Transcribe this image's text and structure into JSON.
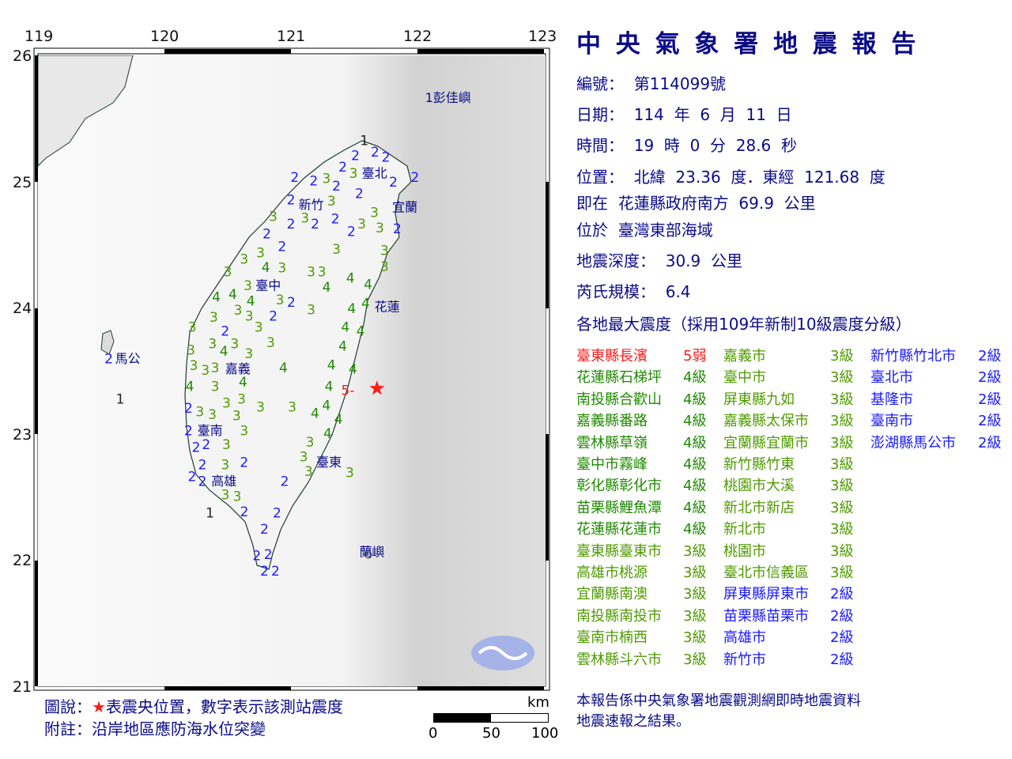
{
  "title": "中 央 氣 象 署 地 震 報 告",
  "info": {
    "number": "編號：  第114099號",
    "date": "日期：  114  年  6  月  11  日",
    "time": "時間：  19  時  0  分  28.6  秒",
    "position": "位置：  北緯  23.36  度．東經  121.68  度",
    "relative": "即在  花蓮縣政府南方  69.9  公里",
    "region": "位於  臺灣東部海域",
    "depth": "地震深度：  30.9  公里",
    "magnitude": "芮氏規模：  6.4",
    "intensity_header": "各地最大震度（採用109年新制10級震度分級）"
  },
  "colors": {
    "level1": "#222222",
    "level2": "#1a1aff",
    "level3": "#4f9a00",
    "level4": "#1f8a00",
    "level5": "#ff1a1a",
    "text": "#0b0b88",
    "frame": "#000000"
  },
  "intensity_table": [
    [
      {
        "name": "臺東縣長濱",
        "level": "5弱",
        "c": "5"
      },
      {
        "name": "花蓮縣石梯坪",
        "level": "4級",
        "c": "4"
      },
      {
        "name": "南投縣合歡山",
        "level": "4級",
        "c": "4"
      },
      {
        "name": "嘉義縣番路",
        "level": "4級",
        "c": "4"
      },
      {
        "name": "雲林縣草嶺",
        "level": "4級",
        "c": "4"
      },
      {
        "name": "臺中市霧峰",
        "level": "4級",
        "c": "4"
      },
      {
        "name": "彰化縣彰化市",
        "level": "4級",
        "c": "4"
      },
      {
        "name": "苗栗縣鯉魚潭",
        "level": "4級",
        "c": "4"
      },
      {
        "name": "花蓮縣花蓮市",
        "level": "4級",
        "c": "4"
      },
      {
        "name": "臺東縣臺東市",
        "level": "3級",
        "c": "3"
      },
      {
        "name": "高雄市桃源",
        "level": "3級",
        "c": "3"
      },
      {
        "name": "宜蘭縣南澳",
        "level": "3級",
        "c": "3"
      },
      {
        "name": "南投縣南投市",
        "level": "3級",
        "c": "3"
      },
      {
        "name": "臺南市楠西",
        "level": "3級",
        "c": "3"
      },
      {
        "name": "雲林縣斗六市",
        "level": "3級",
        "c": "3"
      }
    ],
    [
      {
        "name": "嘉義市",
        "level": "3級",
        "c": "3"
      },
      {
        "name": "臺中市",
        "level": "3級",
        "c": "3"
      },
      {
        "name": "屏東縣九如",
        "level": "3級",
        "c": "3"
      },
      {
        "name": "嘉義縣太保市",
        "level": "3級",
        "c": "3"
      },
      {
        "name": "宜蘭縣宜蘭市",
        "level": "3級",
        "c": "3"
      },
      {
        "name": "新竹縣竹東",
        "level": "3級",
        "c": "3"
      },
      {
        "name": "桃園市大溪",
        "level": "3級",
        "c": "3"
      },
      {
        "name": "新北市新店",
        "level": "3級",
        "c": "3"
      },
      {
        "name": "新北市",
        "level": "3級",
        "c": "3"
      },
      {
        "name": "桃園市",
        "level": "3級",
        "c": "3"
      },
      {
        "name": "臺北市信義區",
        "level": "3級",
        "c": "3"
      },
      {
        "name": "屏東縣屏東市",
        "level": "2級",
        "c": "2"
      },
      {
        "name": "苗栗縣苗栗市",
        "level": "2級",
        "c": "2"
      },
      {
        "name": "高雄市",
        "level": "2級",
        "c": "2"
      },
      {
        "name": "新竹市",
        "level": "2級",
        "c": "2"
      }
    ],
    [
      {
        "name": "新竹縣竹北市",
        "level": "2級",
        "c": "2"
      },
      {
        "name": "臺北市",
        "level": "2級",
        "c": "2"
      },
      {
        "name": "基隆市",
        "level": "2級",
        "c": "2"
      },
      {
        "name": "臺南市",
        "level": "2級",
        "c": "2"
      },
      {
        "name": "澎湖縣馬公市",
        "level": "2級",
        "c": "2"
      }
    ]
  ],
  "map": {
    "lon_ticks": [
      "119",
      "120",
      "121",
      "122",
      "123"
    ],
    "lat_ticks": [
      "26",
      "25",
      "24",
      "23",
      "22",
      "21"
    ],
    "lon_range": [
      119,
      123
    ],
    "lat_range": [
      21,
      26
    ],
    "epicenter": {
      "lon": 121.68,
      "lat": 23.36,
      "icon": "star-icon",
      "color": "#ff1a1a"
    },
    "cities": [
      {
        "name": "1彭佳嶼",
        "lon": 122.06,
        "lat": 25.66
      },
      {
        "name": "臺北",
        "lon": 121.56,
        "lat": 25.06
      },
      {
        "name": "新竹",
        "lon": 121.06,
        "lat": 24.81
      },
      {
        "name": "宜蘭",
        "lon": 121.8,
        "lat": 24.79
      },
      {
        "name": "臺中",
        "lon": 120.72,
        "lat": 24.17
      },
      {
        "name": "花蓮",
        "lon": 121.66,
        "lat": 24.0
      },
      {
        "name": "馬公",
        "lon": 119.61,
        "lat": 23.59
      },
      {
        "name": "嘉義",
        "lon": 120.48,
        "lat": 23.51
      },
      {
        "name": "臺南",
        "lon": 120.26,
        "lat": 23.02
      },
      {
        "name": "臺東",
        "lon": 121.2,
        "lat": 22.77
      },
      {
        "name": "高雄",
        "lon": 120.37,
        "lat": 22.62
      },
      {
        "name": "蘭嶼",
        "lon": 121.54,
        "lat": 22.06
      }
    ],
    "stations": [
      [
        121.58,
        25.32,
        "1"
      ],
      [
        121.51,
        25.2,
        "2"
      ],
      [
        121.64,
        25.23,
        "2"
      ],
      [
        121.75,
        25.19,
        "2"
      ],
      [
        121.41,
        25.11,
        "2"
      ],
      [
        121.03,
        25.03,
        "2"
      ],
      [
        121.18,
        25.0,
        "2"
      ],
      [
        121.28,
        25.02,
        "3"
      ],
      [
        121.45,
        25.06,
        "3"
      ],
      [
        121.81,
        24.99,
        "2"
      ],
      [
        121.98,
        25.03,
        "2"
      ],
      [
        121.36,
        24.96,
        "2"
      ],
      [
        121.54,
        24.9,
        "2"
      ],
      [
        121.28,
        24.91,
        "3"
      ],
      [
        121.0,
        24.85,
        "2"
      ],
      [
        121.08,
        24.76,
        "3"
      ],
      [
        121.0,
        24.66,
        "2"
      ],
      [
        121.11,
        24.66,
        "2"
      ],
      [
        120.86,
        24.72,
        "3"
      ],
      [
        120.81,
        24.58,
        "2"
      ],
      [
        121.35,
        24.7,
        "2"
      ],
      [
        121.66,
        24.75,
        "3"
      ],
      [
        121.56,
        24.66,
        "3"
      ],
      [
        121.49,
        24.62,
        "2"
      ],
      [
        121.69,
        24.65,
        "3"
      ],
      [
        121.84,
        24.62,
        "2"
      ],
      [
        120.93,
        24.48,
        "2"
      ],
      [
        121.36,
        24.46,
        "3"
      ],
      [
        121.74,
        24.45,
        "3"
      ],
      [
        120.76,
        24.43,
        "3"
      ],
      [
        120.77,
        24.37,
        "4"
      ],
      [
        120.63,
        24.38,
        "3"
      ],
      [
        121.74,
        24.32,
        "3"
      ],
      [
        120.93,
        24.31,
        "3"
      ],
      [
        121.16,
        24.28,
        "3"
      ],
      [
        121.22,
        24.28,
        "3"
      ],
      [
        121.47,
        24.23,
        "4"
      ],
      [
        121.61,
        24.18,
        "4"
      ],
      [
        120.5,
        24.28,
        "3"
      ],
      [
        120.66,
        24.17,
        "3"
      ],
      [
        121.26,
        24.17,
        "4"
      ],
      [
        120.41,
        24.08,
        "4"
      ],
      [
        120.54,
        24.1,
        "4"
      ],
      [
        120.67,
        24.07,
        "4"
      ],
      [
        120.9,
        24.08,
        "3"
      ],
      [
        120.94,
        24.04,
        "2"
      ],
      [
        120.56,
        23.99,
        "3"
      ],
      [
        120.39,
        23.92,
        "3"
      ],
      [
        121.16,
        23.98,
        "3"
      ],
      [
        121.48,
        23.99,
        "4"
      ],
      [
        121.59,
        24.03,
        "4"
      ],
      [
        120.86,
        23.93,
        "2"
      ],
      [
        120.67,
        23.93,
        "3"
      ],
      [
        120.22,
        23.84,
        "3"
      ],
      [
        120.48,
        23.81,
        "2"
      ],
      [
        120.72,
        23.84,
        "3"
      ],
      [
        121.43,
        23.84,
        "4"
      ],
      [
        121.55,
        23.81,
        "4"
      ],
      [
        120.21,
        23.66,
        "3"
      ],
      [
        120.38,
        23.71,
        "3"
      ],
      [
        120.53,
        23.71,
        "3"
      ],
      [
        120.84,
        23.72,
        "3"
      ],
      [
        121.41,
        23.69,
        "4"
      ],
      [
        120.68,
        23.61,
        "3"
      ],
      [
        119.56,
        23.59,
        "2"
      ],
      [
        119.65,
        23.27,
        "1"
      ],
      [
        120.21,
        23.55,
        "3"
      ],
      [
        120.4,
        23.52,
        "3"
      ],
      [
        120.47,
        23.55,
        "4"
      ],
      [
        120.28,
        23.5,
        "3"
      ],
      [
        120.59,
        23.46,
        "4"
      ],
      [
        120.94,
        23.52,
        "4"
      ],
      [
        121.32,
        23.54,
        "4"
      ],
      [
        121.49,
        23.51,
        "4"
      ],
      [
        120.2,
        23.37,
        "4"
      ],
      [
        120.4,
        23.37,
        "3"
      ],
      [
        121.3,
        23.37,
        "4"
      ],
      [
        121.45,
        23.34,
        "5-"
      ],
      [
        120.61,
        23.27,
        "3"
      ],
      [
        120.49,
        23.24,
        "3"
      ],
      [
        120.53,
        23.21,
        "3"
      ],
      [
        120.76,
        23.21,
        "3"
      ],
      [
        121.01,
        23.21,
        "3"
      ],
      [
        121.28,
        23.22,
        "4"
      ],
      [
        121.19,
        23.16,
        "4"
      ],
      [
        121.35,
        23.11,
        "4"
      ],
      [
        120.19,
        23.2,
        "2"
      ],
      [
        120.28,
        23.17,
        "3"
      ],
      [
        120.4,
        23.11,
        "3"
      ],
      [
        120.19,
        23.02,
        "2"
      ],
      [
        120.63,
        23.02,
        "3"
      ],
      [
        120.33,
        23.05,
        "2"
      ],
      [
        121.29,
        23.0,
        "4"
      ],
      [
        120.25,
        22.89,
        "2"
      ],
      [
        120.49,
        22.91,
        "3"
      ],
      [
        121.15,
        22.93,
        "3"
      ],
      [
        121.1,
        22.84,
        "3"
      ],
      [
        121.18,
        22.77,
        "3"
      ],
      [
        120.63,
        22.77,
        "2"
      ],
      [
        120.3,
        22.75,
        "2"
      ],
      [
        120.48,
        22.75,
        "3"
      ],
      [
        121.44,
        22.69,
        "3"
      ],
      [
        120.24,
        22.67,
        "2"
      ],
      [
        120.3,
        22.62,
        "2"
      ],
      [
        120.95,
        22.62,
        "2"
      ],
      [
        120.46,
        22.55,
        "3"
      ],
      [
        120.55,
        22.5,
        "3"
      ],
      [
        120.61,
        22.39,
        "2"
      ],
      [
        120.89,
        22.37,
        "2"
      ],
      [
        120.36,
        22.37,
        "1"
      ],
      [
        120.79,
        22.24,
        "2"
      ],
      [
        120.73,
        22.03,
        "2"
      ],
      [
        120.82,
        22.04,
        "2"
      ],
      [
        120.75,
        21.98,
        "2"
      ],
      [
        120.84,
        21.93,
        "2"
      ]
    ]
  },
  "legend": {
    "line1_prefix": "圖說：",
    "star": "★",
    "line1_rest": "表震央位置，數字表示該測站震度",
    "line2": "附註：沿岸地區應防海水位突變"
  },
  "scale": {
    "unit": "km",
    "labels": [
      "0",
      "50",
      "100"
    ]
  },
  "footer": {
    "line1": "本報告係中央氣象署地震觀測網即時地震資料",
    "line2": "地震速報之結果。"
  }
}
